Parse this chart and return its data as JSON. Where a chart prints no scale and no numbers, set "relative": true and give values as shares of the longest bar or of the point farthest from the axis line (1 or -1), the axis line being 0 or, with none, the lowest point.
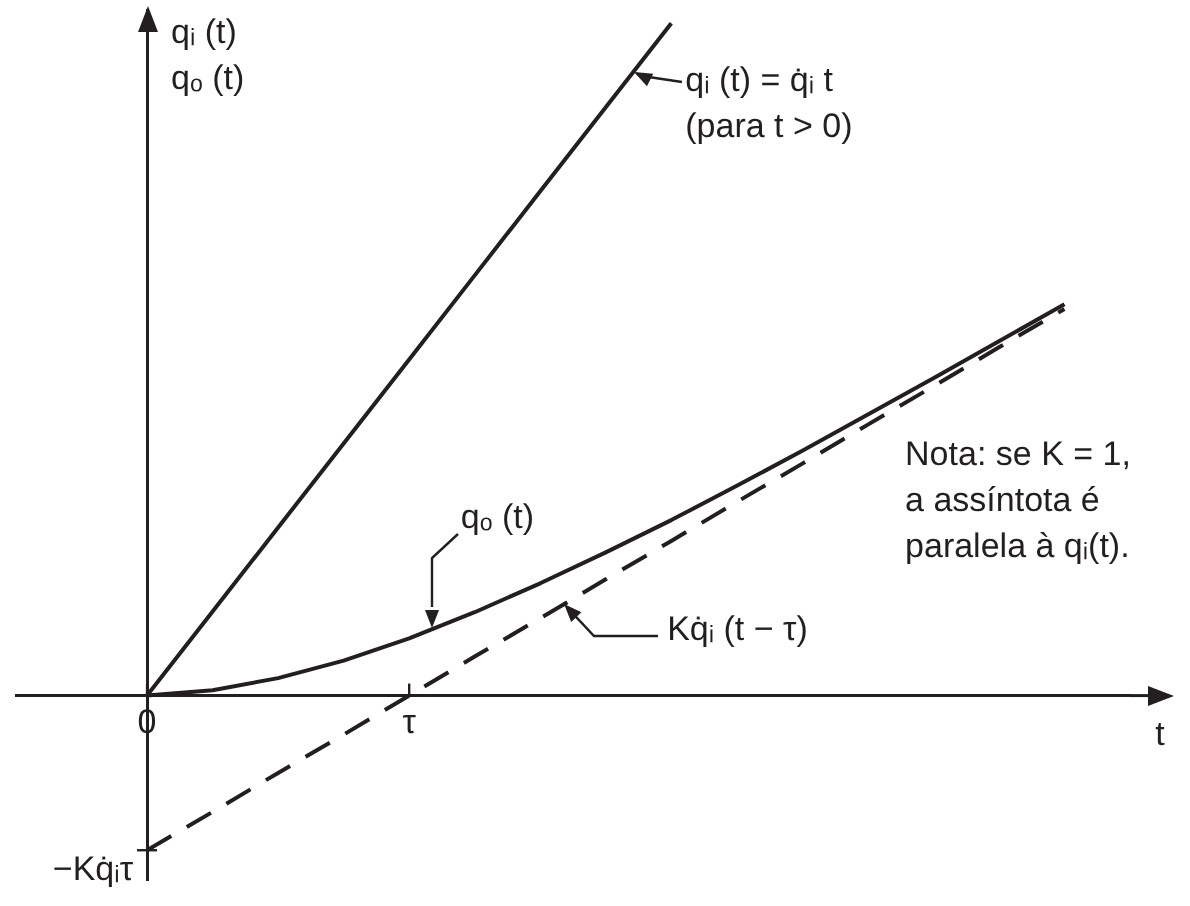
{
  "chart_data": {
    "type": "line",
    "relative": true,
    "xlabel": "t",
    "ylabel": "qᵢ (t)\nqₒ (t)",
    "legend": false,
    "marker": "none",
    "categories": [
      null,
      null,
      "0",
      null,
      null,
      null,
      "τ",
      null,
      null,
      null,
      null,
      null,
      null,
      null,
      null,
      null,
      null,
      null
    ],
    "series": [
      {
        "color": "#231f20",
        "line_style": "solid",
        "values": [
          null,
          null,
          0,
          0.125,
          0.25,
          0.375,
          0.5,
          0.625,
          0.75,
          0.875,
          1,
          null,
          null,
          null,
          null,
          null,
          null,
          null
        ]
      },
      {
        "color": "#231f20",
        "line_style": "solid",
        "values": [
          null,
          null,
          0,
          0.008,
          0.026,
          0.052,
          0.085,
          0.124,
          0.167,
          0.213,
          0.261,
          0.312,
          0.364,
          0.418,
          0.472,
          0.527,
          0.582,
          null
        ]
      },
      {
        "color": "#231f20",
        "line_style": "dashed",
        "values": [
          null,
          null,
          -0.23,
          -0.173,
          -0.115,
          -0.058,
          0,
          0.058,
          0.115,
          0.173,
          0.23,
          0.288,
          0.345,
          0.403,
          0.46,
          0.518,
          0.575,
          null
        ]
      }
    ],
    "annotations": [
      "qᵢ (t) = q̇ᵢ t\n(para t > 0)",
      "qₒ (t)",
      "Kq̇ᵢ (t − τ)",
      "−Kq̇ᵢτ",
      "Nota: se K = 1,\na assíntota é\nparalela à qᵢ(t)."
    ]
  }
}
